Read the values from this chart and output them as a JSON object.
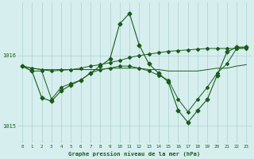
{
  "title": "Graphe pression niveau de la mer (hPa)",
  "background_color": "#d6eeee",
  "grid_color": "#aed0d0",
  "line_color": "#1a5c1a",
  "x_ticks": [
    0,
    1,
    2,
    3,
    4,
    5,
    6,
    7,
    8,
    9,
    10,
    11,
    12,
    13,
    14,
    15,
    16,
    17,
    18,
    19,
    20,
    21,
    22,
    23
  ],
  "ylim": [
    1014.75,
    1016.75
  ],
  "yticks": [
    1015,
    1016
  ],
  "line_flat_x": [
    0,
    1,
    2,
    3,
    4,
    5,
    6,
    7,
    8,
    9,
    10,
    11,
    12,
    13,
    14,
    15,
    16,
    17,
    18,
    19,
    20,
    21,
    22,
    23
  ],
  "line_flat": [
    1015.85,
    1015.82,
    1015.8,
    1015.8,
    1015.8,
    1015.8,
    1015.8,
    1015.8,
    1015.8,
    1015.82,
    1015.82,
    1015.82,
    1015.82,
    1015.8,
    1015.8,
    1015.78,
    1015.78,
    1015.78,
    1015.78,
    1015.8,
    1015.82,
    1015.82,
    1015.85,
    1015.87
  ],
  "line_peak_x": [
    0,
    1,
    2,
    3,
    4,
    5,
    6,
    7,
    8,
    9,
    10,
    11,
    12,
    13,
    14,
    15,
    16,
    17,
    18,
    19,
    20,
    21,
    22,
    23
  ],
  "line_peak": [
    1015.85,
    1015.78,
    1015.4,
    1015.35,
    1015.5,
    1015.58,
    1015.65,
    1015.75,
    1015.85,
    1015.95,
    1016.45,
    1016.6,
    1016.15,
    1015.88,
    1015.75,
    1015.62,
    1015.22,
    1015.05,
    1015.22,
    1015.38,
    1015.72,
    1016.05,
    1016.12,
    1016.12
  ],
  "line_rise_x": [
    0,
    1,
    2,
    3,
    4,
    5,
    6,
    7,
    8,
    9,
    10,
    11,
    12,
    13,
    14,
    15,
    16,
    17,
    18,
    19,
    20,
    21,
    22,
    23
  ],
  "line_rise": [
    1015.85,
    1015.82,
    1015.8,
    1015.78,
    1015.79,
    1015.8,
    1015.82,
    1015.85,
    1015.87,
    1015.9,
    1015.93,
    1015.97,
    1016.0,
    1016.02,
    1016.04,
    1016.06,
    1016.07,
    1016.08,
    1016.09,
    1016.1,
    1016.1,
    1016.1,
    1016.1,
    1016.1
  ],
  "line_dip_x": [
    0,
    1,
    2,
    3,
    4,
    5,
    6,
    7,
    8,
    9,
    10,
    11,
    12,
    13,
    14,
    15,
    16,
    17,
    18,
    19,
    20,
    21,
    22,
    23
  ],
  "line_dip": [
    1015.85,
    1015.78,
    1015.78,
    1015.38,
    1015.55,
    1015.6,
    1015.65,
    1015.75,
    1015.8,
    1015.82,
    1015.85,
    1015.85,
    1015.82,
    1015.78,
    1015.72,
    1015.65,
    1015.38,
    1015.2,
    1015.38,
    1015.55,
    1015.75,
    1015.88,
    1016.1,
    1016.12
  ]
}
